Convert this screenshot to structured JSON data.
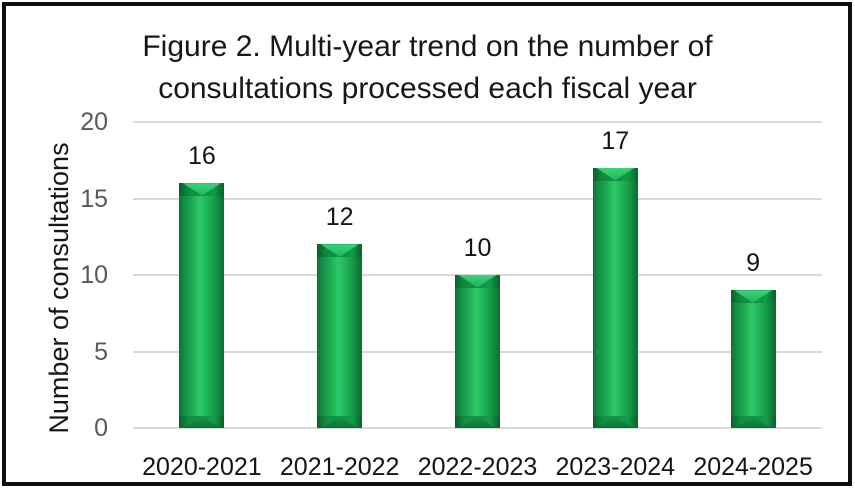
{
  "figure": {
    "title_lines": [
      "Figure 2. Multi-year trend on the number of",
      "consultations processed each fiscal year"
    ]
  },
  "chart_data": {
    "type": "bar",
    "title": "Figure 2. Multi-year trend on the number of consultations processed each fiscal year",
    "categories": [
      "2020-2021",
      "2021-2022",
      "2022-2023",
      "2023-2024",
      "2024-2025"
    ],
    "values": [
      16,
      12,
      10,
      17,
      9
    ],
    "data_labels": [
      "16",
      "12",
      "10",
      "17",
      "9"
    ],
    "xlabel": "",
    "ylabel": "Number of consultations",
    "ylim": [
      0,
      20
    ],
    "yticks": [
      0,
      5,
      10,
      15,
      20
    ],
    "grid": true,
    "legend_position": "none",
    "colors": {
      "bar_main": "#17a04b",
      "bar_highlight": "#2ec967",
      "bar_edge": "#0a7432",
      "gridline": "#d9d9d9",
      "ytick_label": "#595959",
      "text": "#171717",
      "frame_border": "#0d0d0d",
      "background": "#ffffff"
    }
  }
}
